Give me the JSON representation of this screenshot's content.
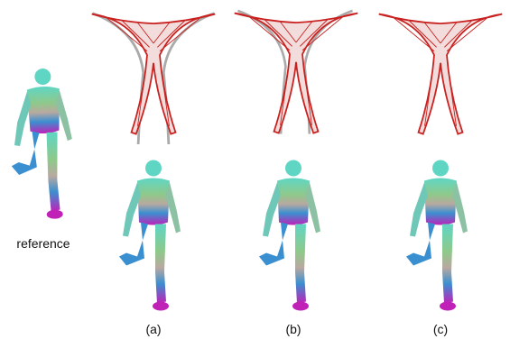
{
  "reference_label": "reference",
  "panels": [
    {
      "label": "(a)"
    },
    {
      "label": "(b)"
    },
    {
      "label": "(c)"
    }
  ]
}
